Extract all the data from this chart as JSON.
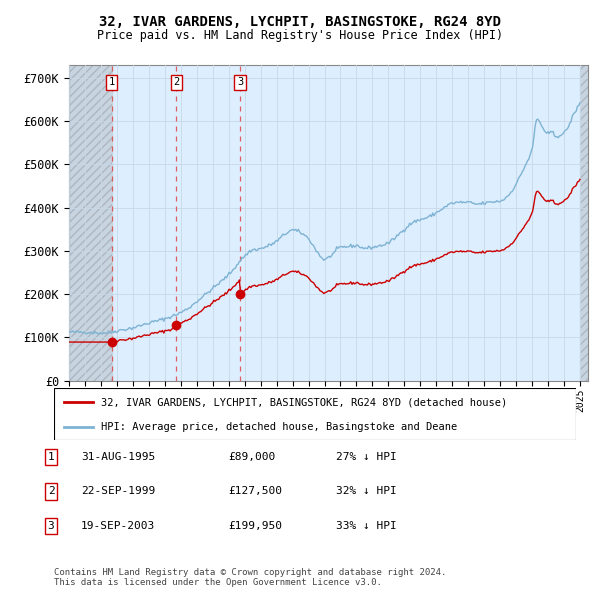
{
  "title1": "32, IVAR GARDENS, LYCHPIT, BASINGSTOKE, RG24 8YD",
  "title2": "Price paid vs. HM Land Registry's House Price Index (HPI)",
  "sale_labels": [
    "1",
    "2",
    "3"
  ],
  "sale_color": "#cc0000",
  "hpi_color": "#7fb3d3",
  "chart_bg": "#ddeeff",
  "hatch_color": "#c0c8d0",
  "legend_sale": "32, IVAR GARDENS, LYCHPIT, BASINGSTOKE, RG24 8YD (detached house)",
  "legend_hpi": "HPI: Average price, detached house, Basingstoke and Deane",
  "table_rows": [
    [
      "1",
      "31-AUG-1995",
      "£89,000",
      "27% ↓ HPI"
    ],
    [
      "2",
      "22-SEP-1999",
      "£127,500",
      "32% ↓ HPI"
    ],
    [
      "3",
      "19-SEP-2003",
      "£199,950",
      "33% ↓ HPI"
    ]
  ],
  "footnote": "Contains HM Land Registry data © Crown copyright and database right 2024.\nThis data is licensed under the Open Government Licence v3.0.",
  "ylabel_ticks": [
    "£0",
    "£100K",
    "£200K",
    "£300K",
    "£400K",
    "£500K",
    "£600K",
    "£700K"
  ],
  "ytick_values": [
    0,
    100000,
    200000,
    300000,
    400000,
    500000,
    600000,
    700000
  ],
  "ylim": [
    0,
    730000
  ],
  "xlim_start": 1993.0,
  "xlim_end": 2025.5,
  "grid_color": "#c8d8e8",
  "dashed_vline_color": "#dd4444"
}
